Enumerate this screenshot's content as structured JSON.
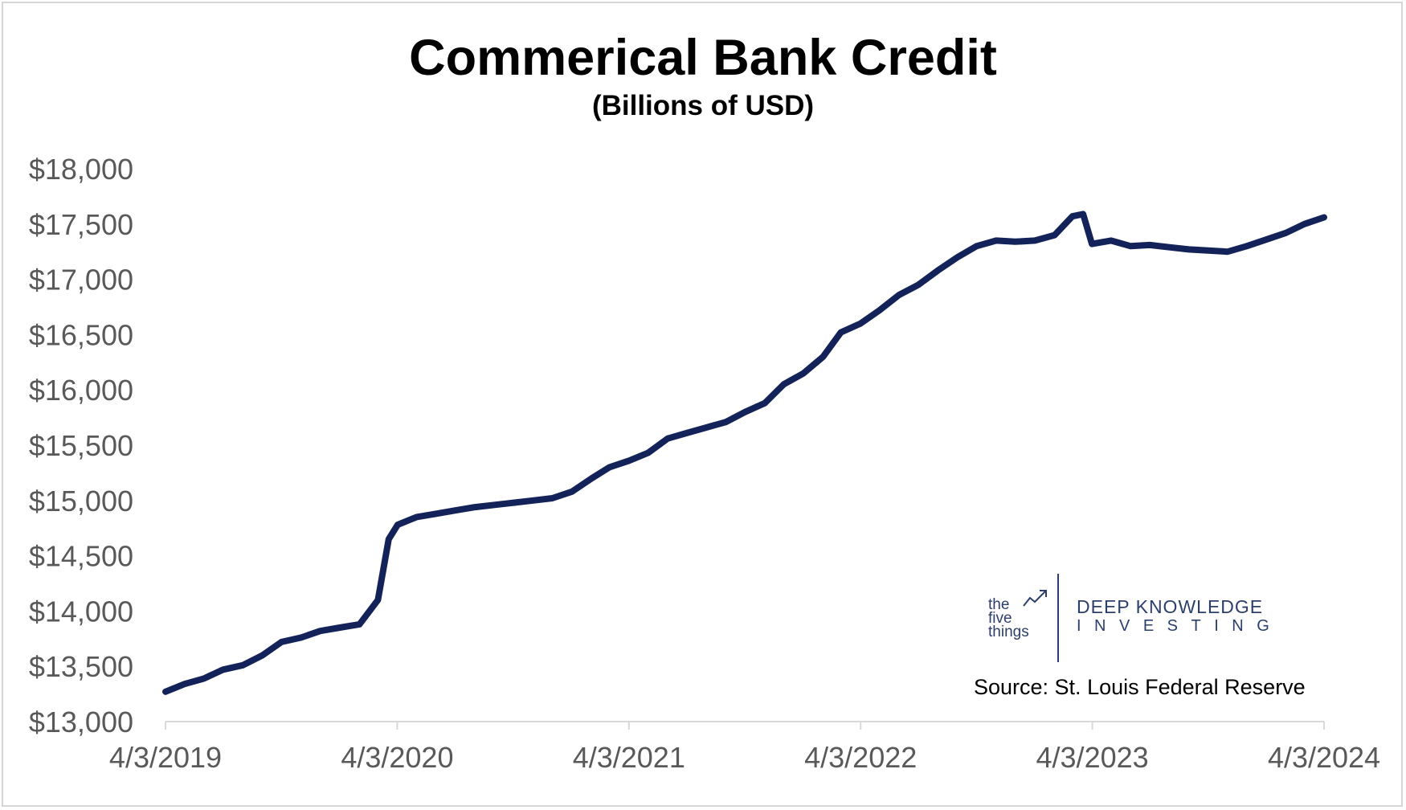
{
  "chart_data": {
    "type": "line",
    "title": "Commerical Bank Credit",
    "subtitle": "(Billions of USD)",
    "xlabel": "",
    "ylabel": "",
    "ylim": [
      13000,
      18000
    ],
    "y_ticks": [
      13000,
      13500,
      14000,
      14500,
      15000,
      15500,
      16000,
      16500,
      17000,
      17500,
      18000
    ],
    "y_tick_labels": [
      "$13,000",
      "$13,500",
      "$14,000",
      "$14,500",
      "$15,000",
      "$15,500",
      "$16,000",
      "$16,500",
      "$17,000",
      "$17,500",
      "$18,000"
    ],
    "x_tick_labels": [
      "4/3/2019",
      "4/3/2020",
      "4/3/2021",
      "4/3/2022",
      "4/3/2023",
      "4/3/2024"
    ],
    "x_range": [
      "2019-04-03",
      "2024-04-03"
    ],
    "grid": false,
    "series_color": "#13235a",
    "series": [
      {
        "x": [
          "2019-04-03",
          "2019-05-03",
          "2019-06-03",
          "2019-07-03",
          "2019-08-03",
          "2019-09-03",
          "2019-10-03",
          "2019-11-03",
          "2019-12-03",
          "2020-01-03",
          "2020-02-03",
          "2020-03-03",
          "2020-03-20",
          "2020-04-03",
          "2020-05-03",
          "2020-06-03",
          "2020-07-03",
          "2020-08-03",
          "2020-09-03",
          "2020-10-03",
          "2020-11-03",
          "2020-12-03",
          "2021-01-03",
          "2021-02-03",
          "2021-03-03",
          "2021-04-03",
          "2021-05-03",
          "2021-06-03",
          "2021-07-03",
          "2021-08-03",
          "2021-09-03",
          "2021-10-03",
          "2021-11-03",
          "2021-12-03",
          "2022-01-03",
          "2022-02-03",
          "2022-03-03",
          "2022-04-03",
          "2022-05-03",
          "2022-06-03",
          "2022-07-03",
          "2022-08-03",
          "2022-09-03",
          "2022-10-03",
          "2022-11-03",
          "2022-12-03",
          "2023-01-03",
          "2023-02-03",
          "2023-03-03",
          "2023-03-20",
          "2023-04-03",
          "2023-05-03",
          "2023-06-03",
          "2023-07-03",
          "2023-08-03",
          "2023-09-03",
          "2023-10-03",
          "2023-11-03",
          "2023-12-03",
          "2024-01-03",
          "2024-02-03",
          "2024-03-03",
          "2024-04-03"
        ],
        "values": [
          13270,
          13340,
          13390,
          13470,
          13510,
          13600,
          13720,
          13760,
          13820,
          13850,
          13880,
          14100,
          14650,
          14780,
          14850,
          14880,
          14910,
          14940,
          14960,
          14980,
          15000,
          15020,
          15080,
          15200,
          15300,
          15360,
          15430,
          15560,
          15610,
          15660,
          15710,
          15800,
          15880,
          16050,
          16150,
          16300,
          16520,
          16600,
          16720,
          16860,
          16950,
          17080,
          17200,
          17300,
          17350,
          17340,
          17350,
          17400,
          17570,
          17590,
          17320,
          17350,
          17300,
          17310,
          17290,
          17270,
          17260,
          17250,
          17300,
          17360,
          17420,
          17500,
          17560
        ]
      }
    ]
  },
  "logo": {
    "small_line1": "the",
    "small_line2": "five",
    "small_line3": "things",
    "big_line1": "DEEP KNOWLEDGE",
    "big_line2": "INVESTING",
    "color": "#2c3e6b"
  },
  "source": "Source: St. Louis Federal Reserve"
}
